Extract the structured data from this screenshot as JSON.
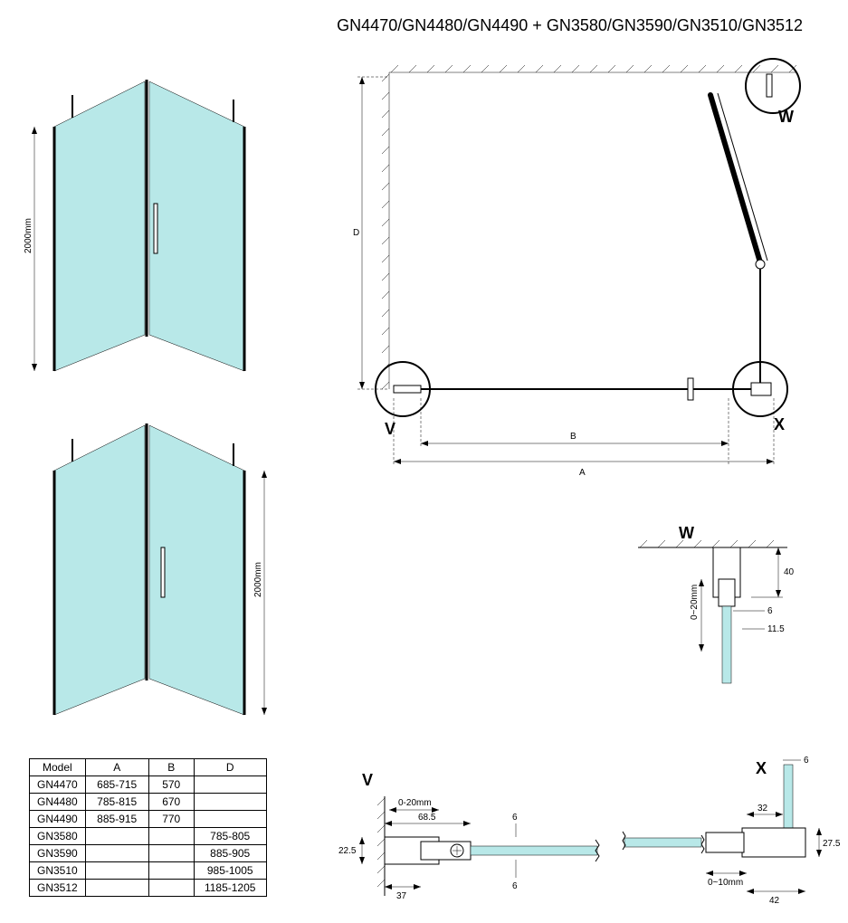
{
  "title": "GN4470/GN4480/GN4490 + GN3580/GN3590/GN3510/GN3512",
  "height_label": "2000mm",
  "plan": {
    "dim_D": "D",
    "dim_B": "B",
    "dim_A": "A",
    "detail_W": "W",
    "detail_V": "V",
    "detail_X": "X"
  },
  "detail_W": {
    "label": "W",
    "dim_40": "40",
    "dim_6": "6",
    "dim_11_5": "11.5",
    "dim_range": "0~20mm"
  },
  "detail_V": {
    "label": "V",
    "dim_0_20": "0-20mm",
    "dim_68_5": "68.5",
    "dim_6a": "6",
    "dim_6b": "6",
    "dim_22_5": "22.5",
    "dim_37": "37"
  },
  "detail_X": {
    "label": "X",
    "dim_6": "6",
    "dim_32": "32",
    "dim_27_5": "27.5",
    "dim_0_10": "0~10mm",
    "dim_42": "42"
  },
  "table": {
    "headers": [
      "Model",
      "A",
      "B",
      "D"
    ],
    "rows": [
      [
        "GN4470",
        "685-715",
        "570",
        ""
      ],
      [
        "GN4480",
        "785-815",
        "670",
        ""
      ],
      [
        "GN4490",
        "885-915",
        "770",
        ""
      ],
      [
        "GN3580",
        "",
        "",
        "785-805"
      ],
      [
        "GN3590",
        "",
        "",
        "885-905"
      ],
      [
        "GN3510",
        "",
        "",
        "985-1005"
      ],
      [
        "GN3512",
        "",
        "",
        "1185-1205"
      ]
    ]
  },
  "colors": {
    "glass": "#b8e8e8",
    "line": "#000000",
    "bg": "#ffffff"
  }
}
